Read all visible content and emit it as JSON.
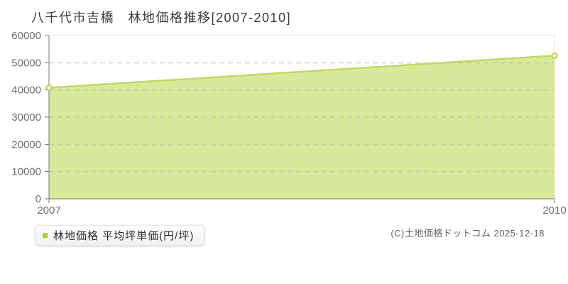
{
  "page": {
    "background": "#ffffff"
  },
  "title": {
    "text": "八千代市吉橋　林地価格推移[2007-2010]"
  },
  "chart_data": {
    "type": "area",
    "title": "八千代市吉橋　林地価格推移[2007-2010]",
    "x": [
      2007,
      2010
    ],
    "series": [
      {
        "name": "林地価格 平均坪単価(円/坪)",
        "values": [
          40800,
          52600
        ]
      }
    ],
    "xlabel": "",
    "ylabel": "",
    "xlim": [
      2007,
      2010
    ],
    "ylim": [
      0,
      60000
    ],
    "x_ticks": [
      2007,
      2010
    ],
    "y_ticks": [
      0,
      10000,
      20000,
      30000,
      40000,
      50000,
      60000
    ],
    "grid": "horizontal-dashed",
    "legend_position": "bottom-left",
    "markers": "endpoints-open-circle",
    "colors": {
      "area_fill": "#d9e99c",
      "line": "#c0dc52",
      "marker_fill": "#ffffff",
      "marker_stroke": "#b4d53e",
      "grid": "#b4b4b4",
      "axis": "#7a7a7a",
      "plot_border": "#e3e3e3",
      "tick_label": "#6e6e6e"
    }
  },
  "legend": {
    "label": "林地価格 平均坪単価(円/坪)",
    "swatch_color": "#a9d42a"
  },
  "footer": {
    "copyright": "(C)土地価格ドットコム 2025-12-18"
  }
}
